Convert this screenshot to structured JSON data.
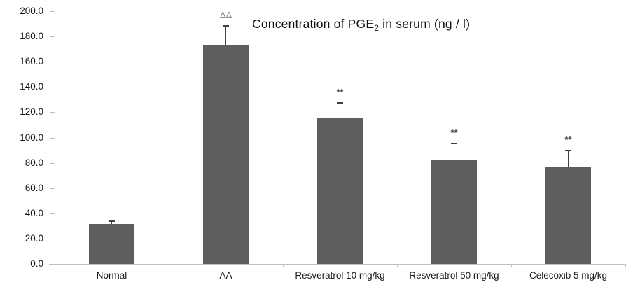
{
  "chart_data": {
    "type": "bar",
    "title": "Concentration of PGE2 in serum (ng / l)",
    "title_parts": {
      "prefix": "Concentration of PGE",
      "subscript": "2",
      "suffix": " in serum (ng / l)"
    },
    "categories": [
      "Normal",
      "AA",
      "Resveratrol 10 mg/kg",
      "Resveratrol 50 mg/kg",
      "Celecoxib 5 mg/kg"
    ],
    "values": [
      31.5,
      173,
      115.5,
      82.5,
      76.5
    ],
    "errors_upper": [
      3,
      16,
      12.5,
      13.5,
      14
    ],
    "annotations": [
      "",
      "ΔΔ",
      "**",
      "**",
      "**"
    ],
    "yticks": [
      "0.0",
      "20.0",
      "40.0",
      "60.0",
      "80.0",
      "100.0",
      "120.0",
      "140.0",
      "160.0",
      "180.0",
      "200.0"
    ],
    "ylim": [
      0,
      200
    ],
    "xlabel": "",
    "ylabel": "",
    "grid": false,
    "legend": null,
    "colors": {
      "bar": "#5e5e5e",
      "axis": "#bfbfbf",
      "error_bar": "#404040",
      "annotation_delta": "#8a8a8a",
      "annotation_star": "#3f3f3f",
      "tick_text": "#1a1a1a",
      "title_text": "#111111",
      "background": "#ffffff"
    }
  }
}
